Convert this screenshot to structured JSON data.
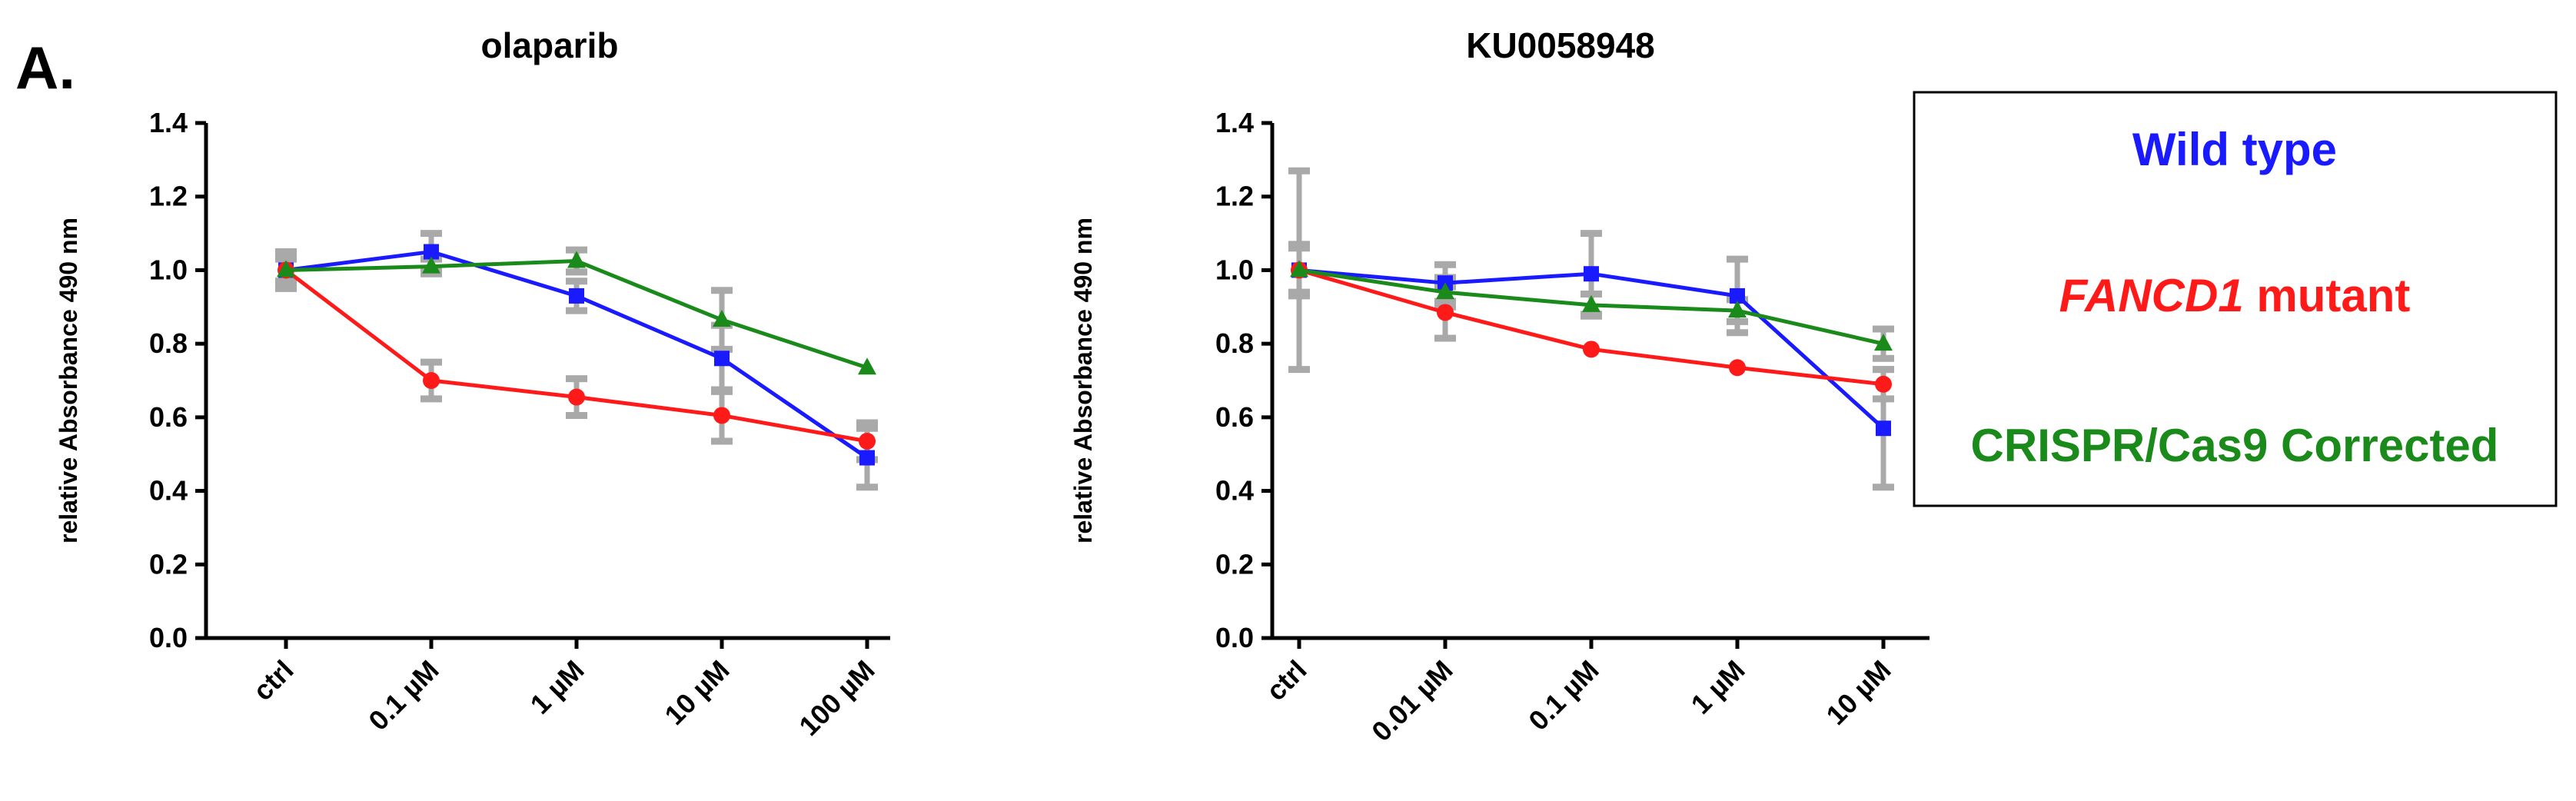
{
  "panel_label": "A.",
  "legend": {
    "entries": [
      {
        "parts": [
          {
            "text": "Wild type",
            "italic": false
          }
        ],
        "color": "#1a1aff"
      },
      {
        "parts": [
          {
            "text": "FANCD1",
            "italic": true
          },
          {
            "text": " mutant",
            "italic": false
          }
        ],
        "color": "#ff1a1a"
      },
      {
        "parts": [
          {
            "text": "CRISPR/Cas9 Corrected",
            "italic": false
          }
        ],
        "color": "#1a8a1a"
      }
    ]
  },
  "chart_data": [
    {
      "type": "line",
      "title": "olaparib",
      "ylabel": "relative Absorbance 490 nm",
      "xlabel": "",
      "categories": [
        "ctrl",
        "0.1 µM",
        "1 µM",
        "10 µM",
        "100 µM"
      ],
      "ylim": [
        0,
        1.4
      ],
      "yticks": [
        "0.0",
        "0.2",
        "0.4",
        "0.6",
        "0.8",
        "1.0",
        "1.2",
        "1.4"
      ],
      "series": [
        {
          "color": "#1a1aff",
          "marker": "square",
          "values": [
            1.0,
            1.05,
            0.93,
            0.76,
            0.49
          ],
          "errors": [
            0.04,
            0.05,
            0.04,
            0.09,
            0.08
          ]
        },
        {
          "color": "#ff1a1a",
          "marker": "circle",
          "values": [
            1.0,
            0.7,
            0.655,
            0.605,
            0.535
          ],
          "errors": [
            0.05,
            0.05,
            0.05,
            0.07,
            0.05
          ]
        },
        {
          "color": "#1a8a1a",
          "marker": "triangle",
          "values": [
            1.0,
            1.01,
            1.025,
            0.865,
            0.735
          ],
          "errors": [
            0.03,
            0.02,
            0.03,
            0.08,
            0.0
          ]
        }
      ]
    },
    {
      "type": "line",
      "title": "KU0058948",
      "ylabel": "relative Absorbance 490 nm",
      "xlabel": "",
      "categories": [
        "ctrl",
        "0.01 µM",
        "0.1 µM",
        "1 µM",
        "10 µM"
      ],
      "ylim": [
        0,
        1.4
      ],
      "yticks": [
        "0.0",
        "0.2",
        "0.4",
        "0.6",
        "0.8",
        "1.0",
        "1.2",
        "1.4"
      ],
      "series": [
        {
          "color": "#1a1aff",
          "marker": "square",
          "values": [
            1.0,
            0.965,
            0.99,
            0.93,
            0.57
          ],
          "errors": [
            0.27,
            0.05,
            0.11,
            0.1,
            0.16
          ]
        },
        {
          "color": "#ff1a1a",
          "marker": "circle",
          "values": [
            1.0,
            0.885,
            0.785,
            0.735,
            0.69
          ],
          "errors": [
            0.07,
            0.07,
            0.0,
            0.0,
            0.04
          ]
        },
        {
          "color": "#1a8a1a",
          "marker": "triangle",
          "values": [
            1.0,
            0.94,
            0.905,
            0.89,
            0.8
          ],
          "errors": [
            0.06,
            0.04,
            0.03,
            0.03,
            0.04
          ]
        }
      ]
    }
  ]
}
